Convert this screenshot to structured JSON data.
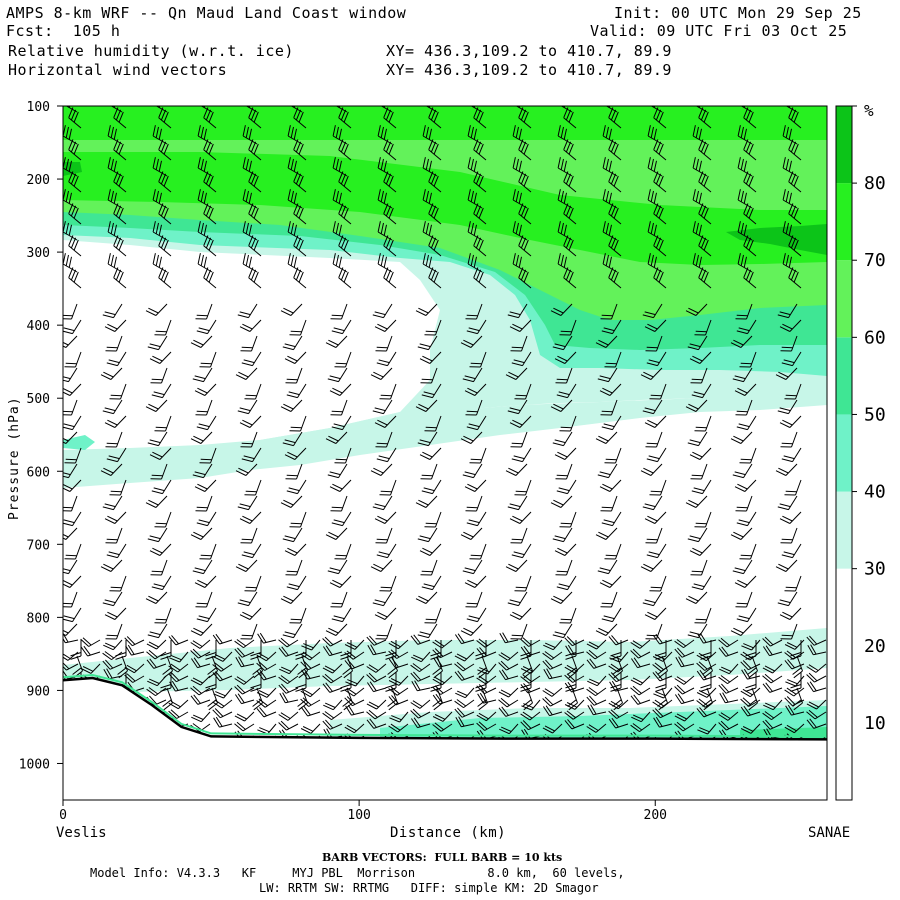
{
  "header": {
    "title": "AMPS 8-km WRF -- Qn Maud Land Coast window",
    "forecast": "Fcst:  105 h",
    "init": "Init: 00 UTC Mon 29 Sep 25",
    "valid": "Valid: 09 UTC Fri 03 Oct 25",
    "field1": "Relative humidity (w.r.t. ice)",
    "field2": "Horizontal wind vectors",
    "xy1": "XY= 436.3,109.2 to 410.7, 89.9",
    "xy2": "XY= 436.3,109.2 to 410.7, 89.9"
  },
  "footer": {
    "barb": "BARB VECTORS:  FULL BARB = 10 kts",
    "model_line1": "Model Info: V4.3.3   KF     MYJ PBL  Morrison          8.0 km,  60 levels,",
    "model_line2": "LW: RRTM SW: RRTMG   DIFF: simple KM: 2D Smagor"
  },
  "chart_data": {
    "type": "heatmap",
    "field": "Relative humidity w.r.t. ice (filled contours) with wind barbs",
    "ylabel": "Pressure (hPa)",
    "xlabel": "Distance (km)",
    "x_start_label": "Veslis",
    "x_end_label": "SANAE",
    "xlim": [
      0,
      258
    ],
    "ylim": [
      100,
      1050
    ],
    "y_scale": "linear, inverted",
    "x_ticks": [
      0,
      100,
      200
    ],
    "y_ticks": [
      100,
      200,
      300,
      400,
      500,
      600,
      700,
      800,
      900,
      1000
    ],
    "colorbar": {
      "unit": "%",
      "tick_labels": [
        10,
        20,
        30,
        40,
        50,
        60,
        70,
        80
      ],
      "levels": [
        0,
        30,
        40,
        50,
        60,
        70,
        80,
        90
      ],
      "colors": [
        "#ffffff",
        "#c7f6e8",
        "#6ff2c8",
        "#3fe694",
        "#63f25a",
        "#27f020",
        "#0cc418",
        "#049328"
      ]
    },
    "terrain_profile_hPa": [
      [
        0,
        886
      ],
      [
        10,
        883
      ],
      [
        20,
        893
      ],
      [
        30,
        920
      ],
      [
        40,
        950
      ],
      [
        50,
        963
      ],
      [
        100,
        965
      ],
      [
        150,
        966
      ],
      [
        200,
        966
      ],
      [
        258,
        967
      ]
    ],
    "dominant_features": [
      {
        "description": "moist band",
        "rh_pct": ">60",
        "pressure_hPa": [
          150,
          280
        ]
      },
      {
        "description": "mid-level moist layer",
        "rh_pct": "30-40",
        "pressure_hPa": [
          520,
          600
        ]
      },
      {
        "description": "low-level moist layer",
        "rh_pct": "30-40",
        "pressure_hPa": [
          830,
          900
        ]
      },
      {
        "description": "near-surface moist layer",
        "rh_pct": "40-60",
        "pressure_hPa": [
          920,
          965
        ]
      }
    ]
  }
}
